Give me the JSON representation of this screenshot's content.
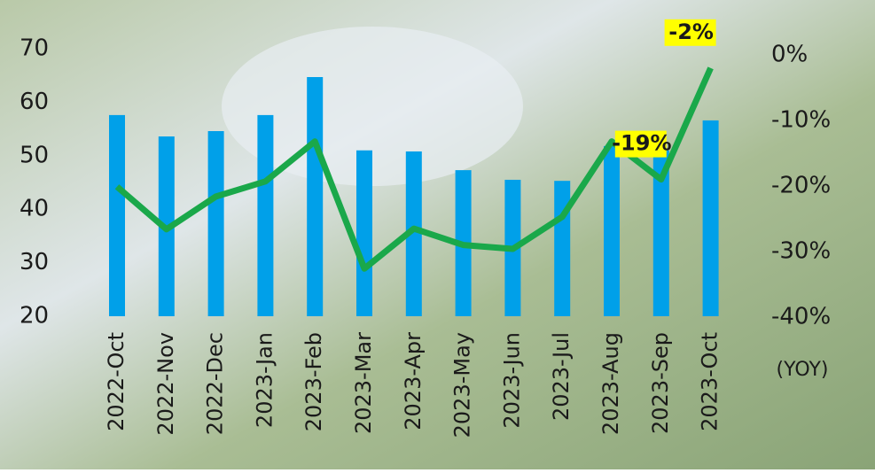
{
  "chart_data": {
    "type": "bar_line",
    "categories": [
      "2022-Oct",
      "2022-Nov",
      "2022-Dec",
      "2023-Jan",
      "2023-Feb",
      "2023-Mar",
      "2023-Apr",
      "2023-May",
      "2023-Jun",
      "2023-Jul",
      "2023-Aug",
      "2023-Sep",
      "2023-Oct"
    ],
    "series": [
      {
        "type": "bar",
        "color": "#00a0e9",
        "values": [
          57.6,
          53.6,
          54.6,
          57.6,
          64.7,
          51,
          50.8,
          47.3,
          45.5,
          45.3,
          51.8,
          51,
          56.6
        ]
      },
      {
        "type": "line",
        "axis": "y2",
        "color": "#1aa84a",
        "values": [
          -20.1,
          -26.6,
          -21.6,
          -19.3,
          -13.2,
          -32.6,
          -26.5,
          -29,
          -29.6,
          -24.7,
          -13.2,
          -19,
          -2
        ],
        "value_labels": [
          null,
          null,
          null,
          null,
          null,
          null,
          null,
          null,
          null,
          null,
          null,
          "-19%",
          "-2%"
        ]
      }
    ],
    "ylim": [
      20,
      70
    ],
    "yticks": [
      20,
      30,
      40,
      50,
      60,
      70
    ],
    "y2lim": [
      -40,
      0
    ],
    "y2ticks": [
      {
        "value": -40,
        "label": "-40%"
      },
      {
        "value": -30,
        "label": "-30%"
      },
      {
        "value": -20,
        "label": "-20%"
      },
      {
        "value": -10,
        "label": "-10%"
      },
      {
        "value": 0,
        "label": "0%"
      }
    ],
    "y2label": "(YOY)"
  }
}
